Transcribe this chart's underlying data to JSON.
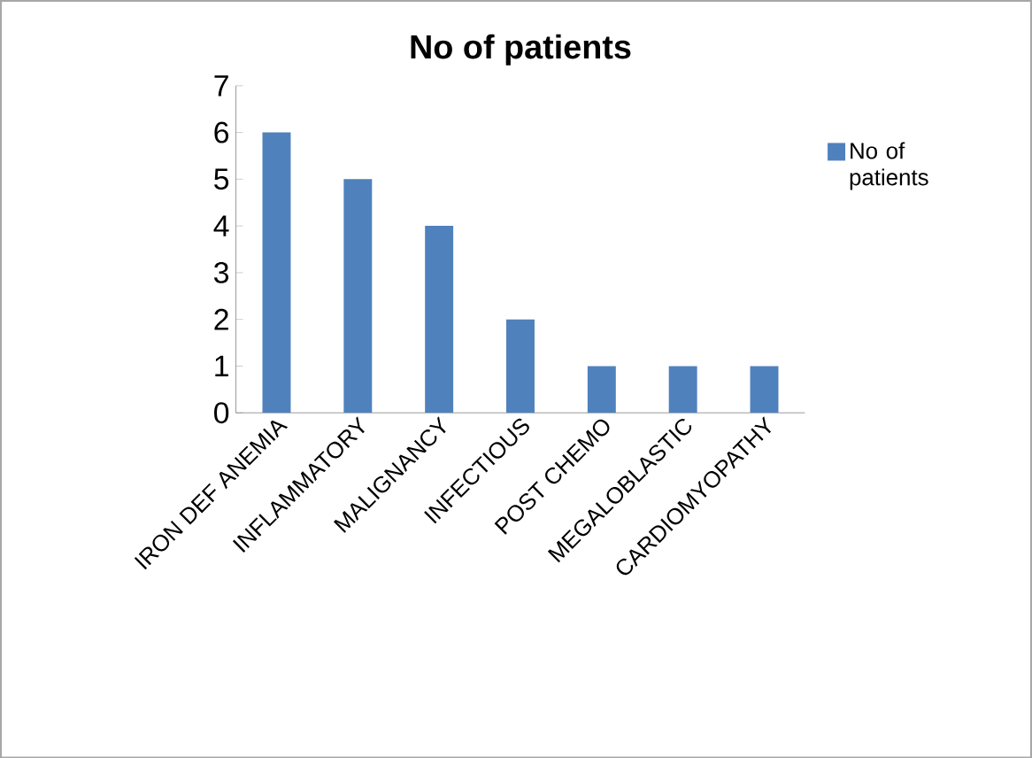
{
  "chart_data": {
    "type": "bar",
    "title": "No of patients",
    "categories": [
      "IRON DEF ANEMIA",
      "INFLAMMATORY",
      "MALIGNANCY",
      "INFECTIOUS",
      "POST CHEMO",
      "MEGALOBLASTIC",
      "CARDIOMYOPATHY"
    ],
    "series": [
      {
        "name": "No of patients",
        "color": "#4f81bd",
        "values": [
          6,
          5,
          4,
          2,
          1,
          1,
          1
        ]
      }
    ],
    "ylim": [
      0,
      7
    ],
    "yticks": [
      0,
      1,
      2,
      3,
      4,
      5,
      6,
      7
    ],
    "grid": false,
    "legend": "right"
  }
}
